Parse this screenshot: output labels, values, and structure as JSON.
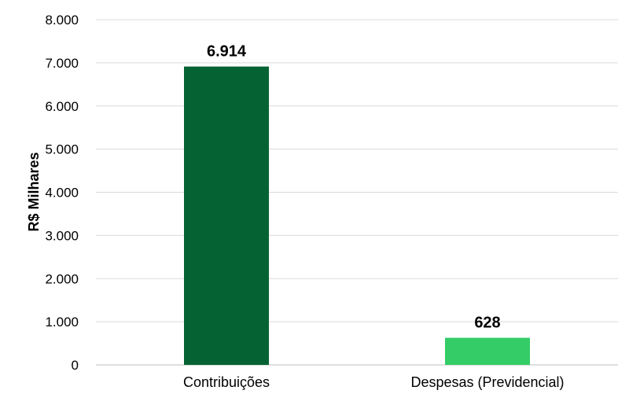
{
  "chart_data": {
    "type": "bar",
    "ylabel": "R$ Milhares",
    "xlabel": "",
    "ylim": [
      0,
      8000
    ],
    "y_ticks": [
      0,
      1000,
      2000,
      3000,
      4000,
      5000,
      6000,
      7000,
      8000
    ],
    "y_tick_labels": [
      "0",
      "1.000",
      "2.000",
      "3.000",
      "4.000",
      "5.000",
      "6.000",
      "7.000",
      "8.000"
    ],
    "grid": true,
    "categories": [
      "Contribuições",
      "Despesas (Previdencial)"
    ],
    "values": [
      6914,
      628
    ],
    "value_labels": [
      "6.914",
      "628"
    ],
    "colors": [
      "#056333",
      "#33cc66"
    ]
  }
}
